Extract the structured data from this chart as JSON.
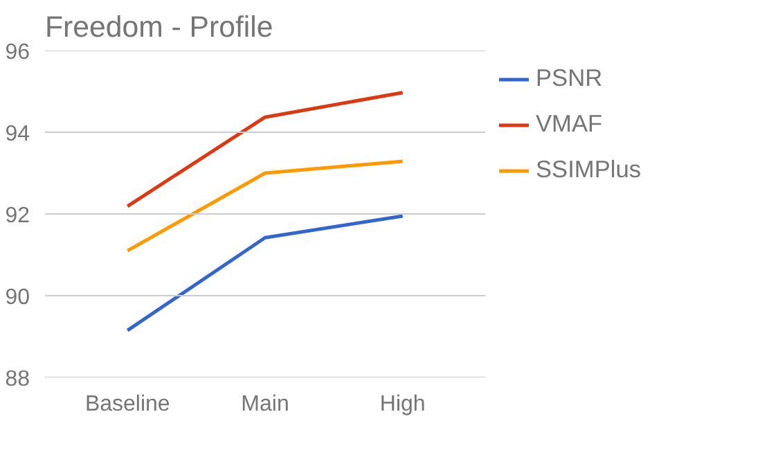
{
  "chart_data": {
    "type": "line",
    "title": "Freedom - Profile",
    "categories": [
      "Baseline",
      "Main",
      "High"
    ],
    "series": [
      {
        "name": "PSNR",
        "color": "#3366cc",
        "values": [
          89.15,
          91.42,
          91.95
        ]
      },
      {
        "name": "VMAF",
        "color": "#dc3912",
        "values": [
          92.19,
          94.37,
          94.97
        ]
      },
      {
        "name": "SSIMPlus",
        "color": "#ff9900",
        "values": [
          91.1,
          93.0,
          93.29
        ]
      }
    ],
    "ylim": [
      88,
      96
    ],
    "yticks": [
      88,
      90,
      92,
      94,
      96
    ],
    "grid": "y",
    "legend": "right",
    "line_style": "solid",
    "marker": "none"
  }
}
